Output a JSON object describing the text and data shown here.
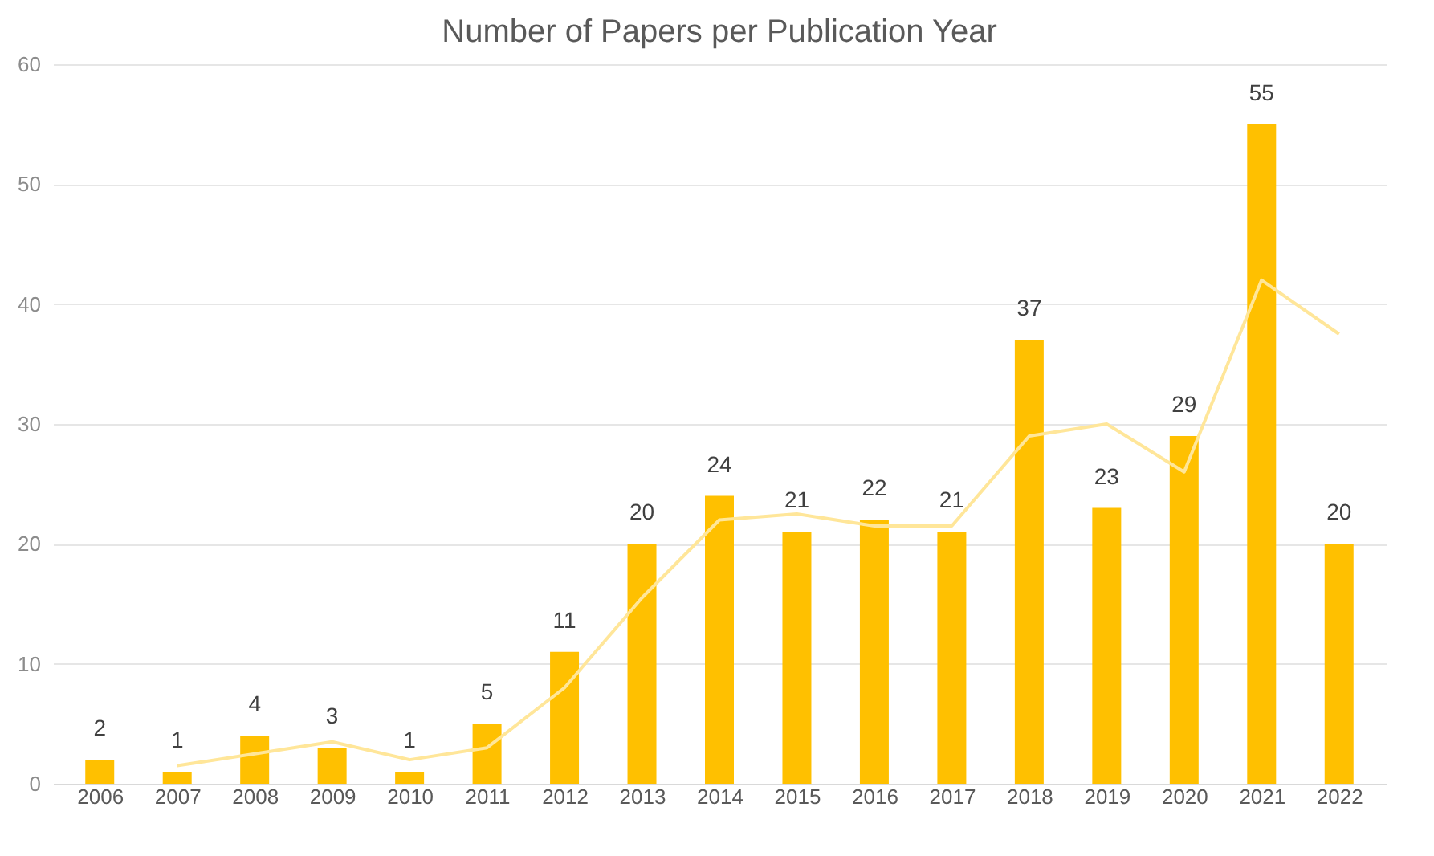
{
  "chart_data": {
    "type": "bar",
    "title": "Number of Papers per Publication Year",
    "categories": [
      "2006",
      "2007",
      "2008",
      "2009",
      "2010",
      "2011",
      "2012",
      "2013",
      "2014",
      "2015",
      "2016",
      "2017",
      "2018",
      "2019",
      "2020",
      "2021",
      "2022"
    ],
    "series": [
      {
        "color": "#ffc000",
        "values": [
          2,
          1,
          4,
          3,
          1,
          5,
          11,
          20,
          24,
          21,
          22,
          21,
          37,
          23,
          29,
          55,
          20
        ],
        "value_labels": [
          "2",
          "1",
          "4",
          "3",
          "1",
          "5",
          "11",
          "20",
          "24",
          "21",
          "22",
          "21",
          "37",
          "23",
          "29",
          "55",
          "20"
        ]
      },
      {
        "type": "line",
        "color": "#ffe699",
        "values": [
          null,
          1.5,
          2.5,
          3.5,
          2,
          3,
          8,
          15.5,
          22,
          22.5,
          21.5,
          21.5,
          29,
          30,
          26,
          42,
          37.5
        ]
      }
    ],
    "ylim": [
      0,
      60
    ],
    "yticks": [
      0,
      10,
      20,
      30,
      40,
      50,
      60
    ],
    "grid": "y",
    "legend": false
  }
}
